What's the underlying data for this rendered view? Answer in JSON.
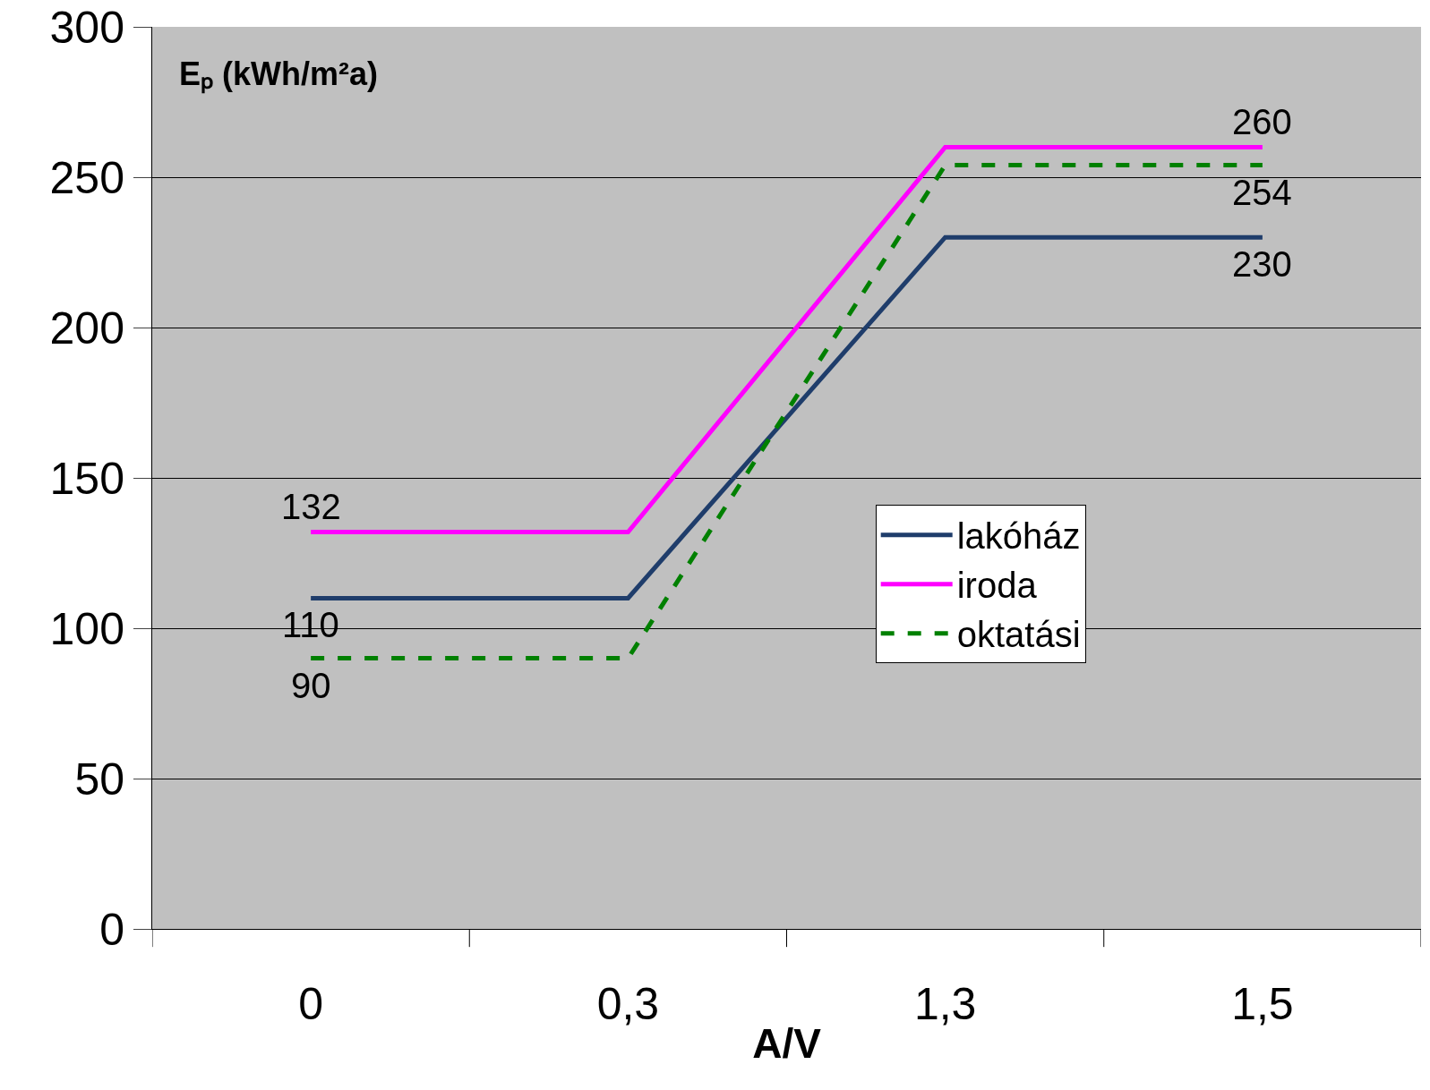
{
  "chart_data": {
    "type": "line",
    "xlabel": "A/V",
    "ylabel": "Eₚ (kWh/m²a)",
    "categories": [
      "0",
      "0,3",
      "1,3",
      "1,5"
    ],
    "ylim": [
      0,
      300
    ],
    "yticks": [
      0,
      50,
      100,
      150,
      200,
      250,
      300
    ],
    "grid": "y",
    "legend": "right",
    "marker": "none",
    "series": [
      {
        "name": "lakóház",
        "color": "#1f3d6b",
        "values": [
          110,
          110,
          230,
          230
        ],
        "value_labels": [
          "110",
          null,
          null,
          "230"
        ]
      },
      {
        "name": "iroda",
        "color": "#ff00ff",
        "values": [
          132,
          132,
          260,
          260
        ],
        "value_labels": [
          "132",
          null,
          null,
          "260"
        ]
      },
      {
        "name": "oktatási",
        "color": "#008000",
        "line_style": "dashed",
        "values": [
          90,
          90,
          254,
          254
        ],
        "value_labels": [
          "90",
          null,
          null,
          "254"
        ]
      }
    ]
  }
}
